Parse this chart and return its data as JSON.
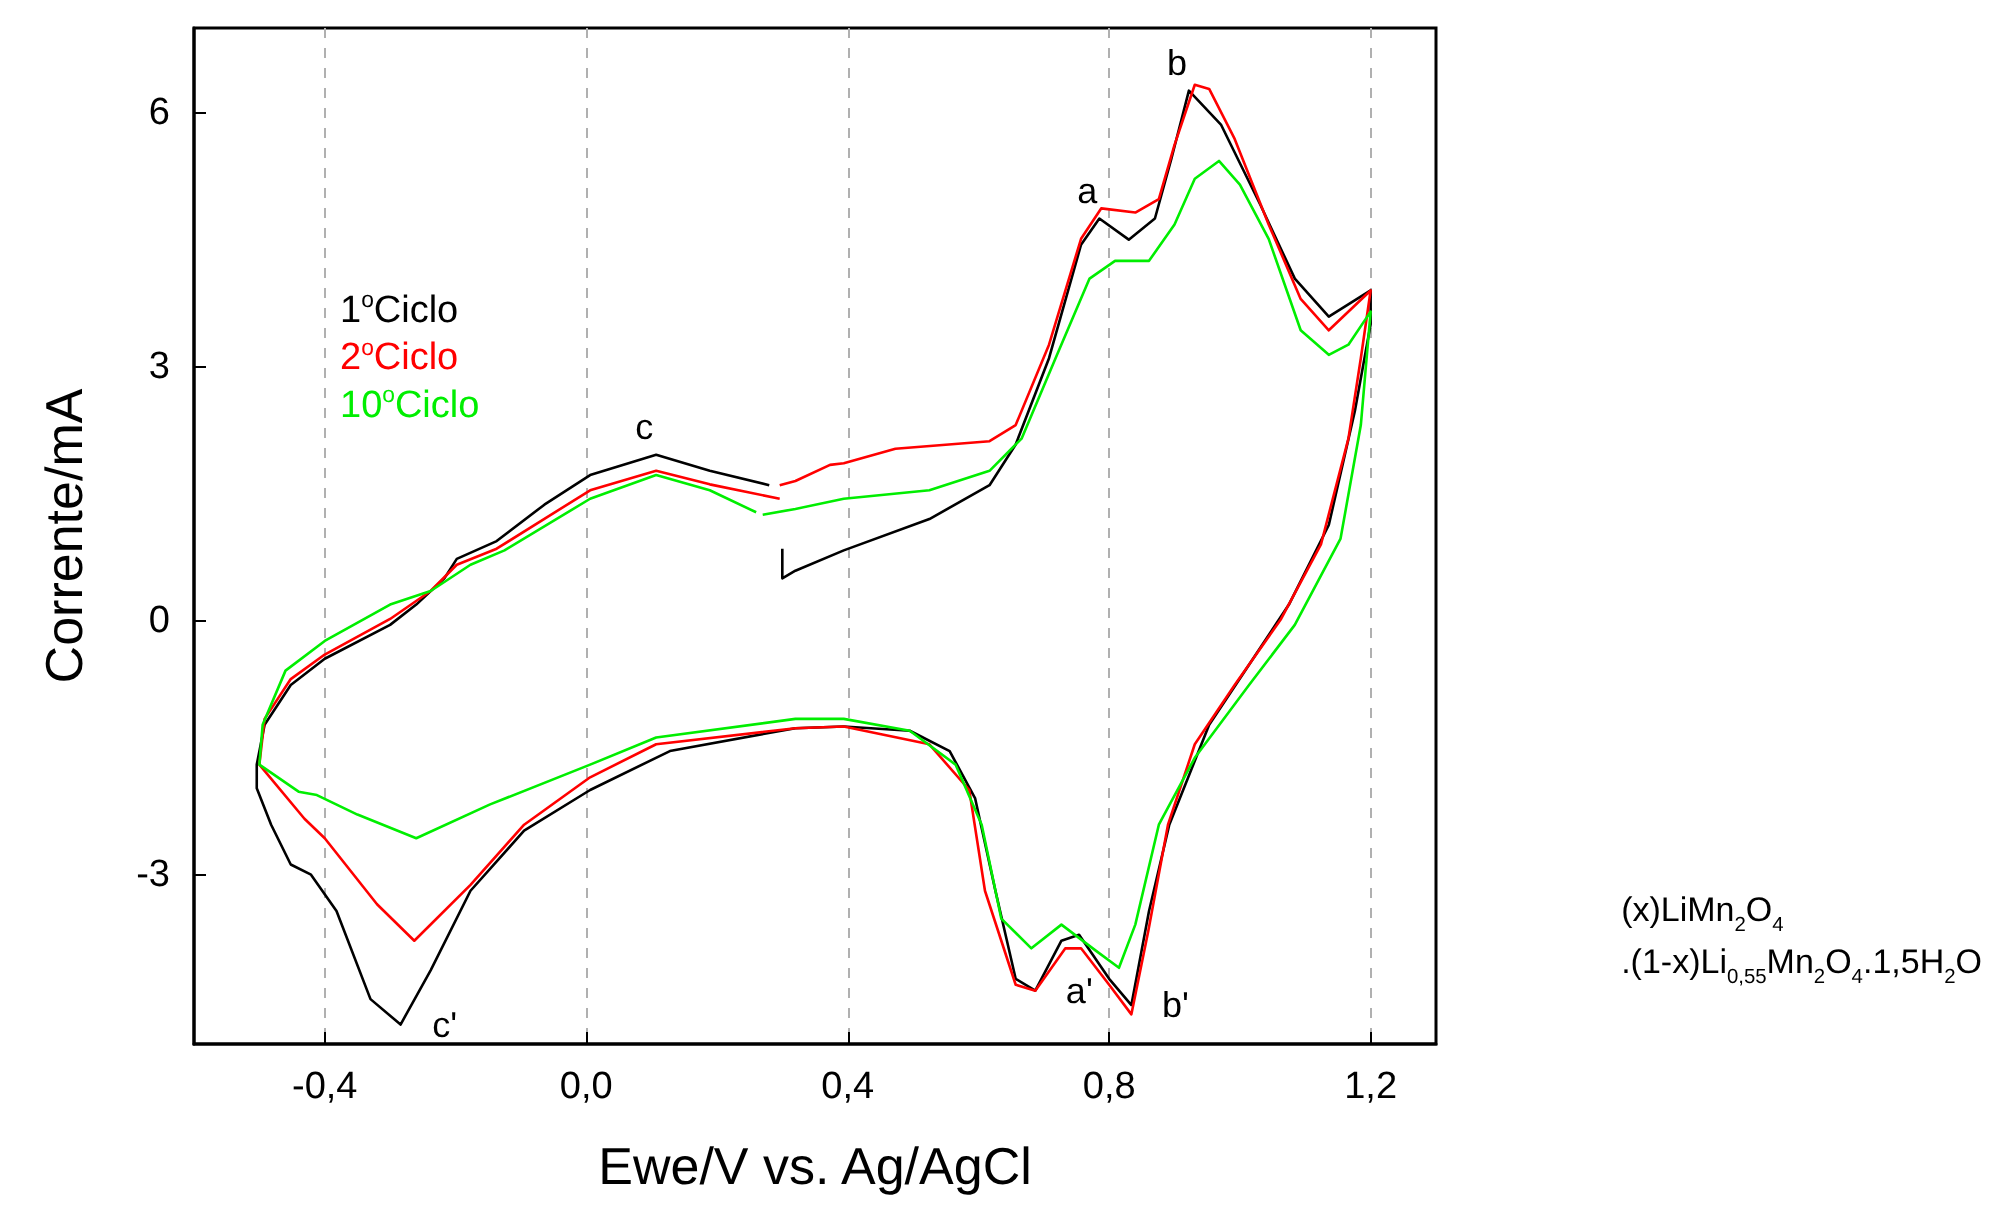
{
  "chart_data": {
    "type": "line",
    "xlabel": "Ewe/V vs. Ag/AgCl",
    "ylabel": "Corrente/mA",
    "xlim": [
      -0.6,
      1.3
    ],
    "ylim": [
      -5,
      7
    ],
    "xticks": [
      {
        "value": -0.4,
        "label": "-0,4"
      },
      {
        "value": 0,
        "label": "0,0"
      },
      {
        "value": 0.4,
        "label": "0,4"
      },
      {
        "value": 0.8,
        "label": "0,8"
      },
      {
        "value": 1.2,
        "label": "1,2"
      }
    ],
    "yticks": [
      -3,
      0,
      3,
      6
    ],
    "grid": "x",
    "legend": "left",
    "marker": "none",
    "line_style": "solid",
    "annotations": [
      {
        "text": "a",
        "x": 0.785,
        "y": 4.75
      },
      {
        "text": "b",
        "x": 0.922,
        "y": 6.26
      },
      {
        "text": "c",
        "x": 0.107,
        "y": 1.96
      },
      {
        "text": "a'",
        "x": 0.687,
        "y": -4.37
      },
      {
        "text": "b'",
        "x": 0.834,
        "y": -4.54
      },
      {
        "text": "c'",
        "x": -0.284,
        "y": -4.77
      },
      "(x)LiMn$_{2}$O$_{4}$\n.(1-x)Li$_{0,55}$Mn$_{2}$O$_{4}$.1,5H$_{2}$O"
    ],
    "series": [
      {
        "name": "1$^{o}$Ciclo",
        "color": "#000000",
        "x": [
          0.3,
          0.3,
          0.32,
          0.394,
          0.525,
          0.617,
          0.657,
          0.708,
          0.757,
          0.785,
          0.83,
          0.87,
          0.895,
          0.922,
          0.971,
          1.032,
          1.084,
          1.136,
          1.2,
          1.2,
          1.176,
          1.136,
          1.075,
          1.014,
          0.953,
          0.892,
          0.861,
          0.834,
          0.8,
          0.754,
          0.727,
          0.687,
          0.657,
          0.626,
          0.595,
          0.556,
          0.495,
          0.394,
          0.32,
          0.128,
          0.006,
          -0.095,
          -0.177,
          -0.238,
          -0.284,
          -0.33,
          -0.382,
          -0.421,
          -0.452,
          -0.482,
          -0.504,
          -0.504,
          -0.492,
          -0.452,
          -0.4,
          -0.3,
          -0.26,
          -0.217,
          -0.198,
          -0.137,
          -0.064,
          0.006,
          0.107,
          0.189,
          0.28
        ],
        "values": [
          0.85,
          0.5,
          0.59,
          0.83,
          1.2,
          1.6,
          2.08,
          3.1,
          4.44,
          4.75,
          4.5,
          4.75,
          5.45,
          6.26,
          5.86,
          4.9,
          4.04,
          3.59,
          3.9,
          3.5,
          2.48,
          1.13,
          0.19,
          -0.52,
          -1.23,
          -2.41,
          -3.43,
          -4.54,
          -4.23,
          -3.71,
          -3.78,
          -4.37,
          -4.23,
          -3.19,
          -2.1,
          -1.54,
          -1.3,
          -1.25,
          -1.27,
          -1.54,
          -2.0,
          -2.48,
          -3.19,
          -4.13,
          -4.77,
          -4.47,
          -3.43,
          -3.0,
          -2.88,
          -2.41,
          -1.98,
          -1.7,
          -1.23,
          -0.76,
          -0.45,
          -0.05,
          0.19,
          0.5,
          0.73,
          0.94,
          1.37,
          1.72,
          1.96,
          1.77,
          1.6
        ]
      },
      {
        "name": "2$^{o}$Ciclo",
        "color": "#ff0000",
        "x": [
          0.296,
          0.32,
          0.373,
          0.394,
          0.473,
          0.617,
          0.657,
          0.708,
          0.757,
          0.788,
          0.84,
          0.876,
          0.9,
          0.931,
          0.953,
          0.992,
          1.044,
          1.093,
          1.136,
          1.2,
          1.185,
          1.166,
          1.124,
          1.063,
          0.992,
          0.931,
          0.89,
          0.86,
          0.834,
          0.8,
          0.757,
          0.733,
          0.687,
          0.657,
          0.61,
          0.586,
          0.525,
          0.394,
          0.32,
          0.107,
          0.006,
          -0.095,
          -0.177,
          -0.263,
          -0.32,
          -0.4,
          -0.431,
          -0.5,
          -0.492,
          -0.452,
          -0.4,
          -0.3,
          -0.238,
          -0.198,
          -0.137,
          0.006,
          0.107,
          0.189,
          0.296
        ],
        "values": [
          1.6,
          1.65,
          1.84,
          1.86,
          2.03,
          2.12,
          2.31,
          3.26,
          4.51,
          4.87,
          4.82,
          4.98,
          5.62,
          6.33,
          6.28,
          5.69,
          4.68,
          3.8,
          3.43,
          3.9,
          3.1,
          2.15,
          0.9,
          0.02,
          -0.76,
          -1.46,
          -2.41,
          -3.66,
          -4.65,
          -4.3,
          -3.87,
          -3.87,
          -4.37,
          -4.3,
          -3.19,
          -2.0,
          -1.46,
          -1.25,
          -1.27,
          -1.46,
          -1.85,
          -2.41,
          -3.12,
          -3.78,
          -3.35,
          -2.57,
          -2.34,
          -1.7,
          -1.16,
          -0.69,
          -0.4,
          0.02,
          0.35,
          0.66,
          0.85,
          1.54,
          1.77,
          1.61,
          1.44
        ]
      },
      {
        "name": "10$^{o}$Ciclo",
        "color": "#00ee00",
        "x": [
          0.27,
          0.32,
          0.394,
          0.525,
          0.617,
          0.666,
          0.718,
          0.77,
          0.809,
          0.861,
          0.9,
          0.931,
          0.968,
          1.0,
          1.044,
          1.093,
          1.136,
          1.166,
          1.2,
          1.185,
          1.154,
          1.084,
          1.014,
          0.931,
          0.876,
          0.84,
          0.815,
          0.78,
          0.727,
          0.681,
          0.635,
          0.605,
          0.565,
          0.495,
          0.394,
          0.32,
          0.107,
          0.006,
          -0.147,
          -0.26,
          -0.35,
          -0.412,
          -0.44,
          -0.5,
          -0.495,
          -0.46,
          -0.4,
          -0.3,
          -0.238,
          -0.177,
          -0.125,
          0.006,
          0.107,
          0.189,
          0.26
        ],
        "values": [
          1.25,
          1.32,
          1.44,
          1.54,
          1.77,
          2.15,
          3.1,
          4.04,
          4.25,
          4.25,
          4.68,
          5.22,
          5.43,
          5.15,
          4.51,
          3.43,
          3.14,
          3.26,
          3.65,
          2.31,
          0.97,
          -0.05,
          -0.76,
          -1.62,
          -2.41,
          -3.59,
          -4.1,
          -3.9,
          -3.59,
          -3.87,
          -3.52,
          -2.41,
          -1.7,
          -1.3,
          -1.16,
          -1.16,
          -1.38,
          -1.7,
          -2.17,
          -2.57,
          -2.29,
          -2.06,
          -2.02,
          -1.7,
          -1.23,
          -0.59,
          -0.24,
          0.19,
          0.35,
          0.66,
          0.83,
          1.44,
          1.72,
          1.54,
          1.28
        ]
      }
    ]
  }
}
